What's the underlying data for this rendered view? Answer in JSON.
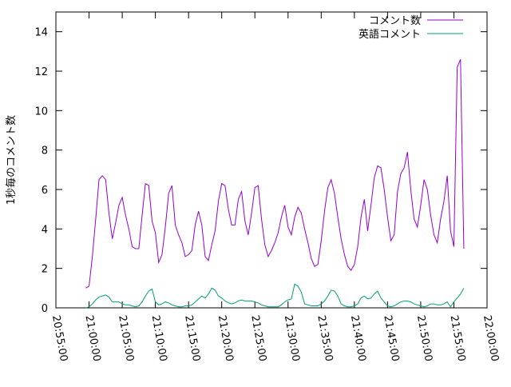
{
  "chart_data": {
    "type": "line",
    "y_label": "1秒毎のコメント数",
    "x": [
      "20:59:30",
      "21:00:00",
      "21:00:30",
      "21:01:00",
      "21:01:30",
      "21:02:00",
      "21:02:30",
      "21:03:00",
      "21:03:30",
      "21:04:00",
      "21:04:30",
      "21:05:00",
      "21:05:30",
      "21:06:00",
      "21:06:30",
      "21:07:00",
      "21:07:30",
      "21:08:00",
      "21:08:30",
      "21:09:00",
      "21:09:30",
      "21:10:00",
      "21:10:30",
      "21:11:00",
      "21:11:30",
      "21:12:00",
      "21:12:30",
      "21:13:00",
      "21:13:30",
      "21:14:00",
      "21:14:30",
      "21:15:00",
      "21:15:30",
      "21:16:00",
      "21:16:30",
      "21:17:00",
      "21:17:30",
      "21:18:00",
      "21:18:30",
      "21:19:00",
      "21:19:30",
      "21:20:00",
      "21:20:30",
      "21:21:00",
      "21:21:30",
      "21:22:00",
      "21:22:30",
      "21:23:00",
      "21:23:30",
      "21:24:00",
      "21:24:30",
      "21:25:00",
      "21:25:30",
      "21:26:00",
      "21:26:30",
      "21:27:00",
      "21:27:30",
      "21:28:00",
      "21:28:30",
      "21:29:00",
      "21:29:30",
      "21:30:00",
      "21:30:30",
      "21:31:00",
      "21:31:30",
      "21:32:00",
      "21:32:30",
      "21:33:00",
      "21:33:30",
      "21:34:00",
      "21:34:30",
      "21:35:00",
      "21:35:30",
      "21:36:00",
      "21:36:30",
      "21:37:00",
      "21:37:30",
      "21:38:00",
      "21:38:30",
      "21:39:00",
      "21:39:30",
      "21:40:00",
      "21:40:30",
      "21:41:00",
      "21:41:30",
      "21:42:00",
      "21:42:30",
      "21:43:00",
      "21:43:30",
      "21:44:00",
      "21:44:30",
      "21:45:00",
      "21:45:30",
      "21:46:00",
      "21:46:30",
      "21:47:00",
      "21:47:30",
      "21:48:00",
      "21:48:30",
      "21:49:00",
      "21:49:30",
      "21:50:00",
      "21:50:30",
      "21:51:00",
      "21:51:30",
      "21:52:00",
      "21:52:30",
      "21:53:00",
      "21:53:30",
      "21:54:00",
      "21:54:30",
      "21:55:00",
      "21:55:30",
      "21:56:00",
      "21:56:30"
    ],
    "series": [
      {
        "name": "コメント数",
        "color": "#9400d3",
        "values": [
          1.0,
          1.1,
          2.6,
          4.5,
          6.5,
          6.7,
          6.5,
          4.8,
          3.5,
          4.3,
          5.2,
          5.6,
          4.7,
          4.0,
          3.1,
          3.0,
          3.0,
          4.7,
          6.3,
          6.2,
          4.4,
          3.8,
          2.3,
          2.7,
          4.1,
          5.8,
          6.2,
          4.2,
          3.7,
          3.3,
          2.6,
          2.7,
          2.9,
          4.2,
          4.9,
          4.2,
          2.6,
          2.4,
          3.2,
          3.9,
          5.4,
          6.3,
          6.2,
          5.0,
          4.2,
          4.2,
          5.5,
          5.9,
          4.4,
          3.7,
          4.8,
          6.1,
          6.2,
          4.5,
          3.2,
          2.6,
          2.9,
          3.3,
          3.8,
          4.6,
          5.2,
          4.1,
          3.7,
          4.6,
          5.1,
          4.8,
          4.0,
          3.3,
          2.5,
          2.1,
          2.2,
          3.4,
          4.9,
          6.1,
          6.5,
          5.8,
          4.6,
          3.5,
          2.7,
          2.1,
          1.9,
          2.2,
          3.1,
          4.6,
          5.5,
          3.9,
          5.2,
          6.6,
          7.2,
          7.1,
          6.0,
          4.6,
          3.4,
          3.7,
          5.9,
          6.8,
          7.1,
          7.9,
          6.0,
          4.5,
          4.1,
          5.2,
          6.5,
          6.0,
          4.7,
          3.7,
          3.3,
          4.5,
          5.4,
          6.7,
          3.9,
          3.1,
          12.2,
          12.6,
          3.0
        ]
      },
      {
        "name": "英語コメント",
        "color": "#009e73",
        "values": [
          0.0,
          0.05,
          0.2,
          0.4,
          0.55,
          0.6,
          0.65,
          0.55,
          0.3,
          0.3,
          0.3,
          0.2,
          0.15,
          0.15,
          0.1,
          0.05,
          0.1,
          0.3,
          0.6,
          0.85,
          0.95,
          0.3,
          0.15,
          0.2,
          0.3,
          0.25,
          0.15,
          0.1,
          0.05,
          0.05,
          0.1,
          0.1,
          0.15,
          0.3,
          0.45,
          0.6,
          0.5,
          0.7,
          1.0,
          0.9,
          0.6,
          0.5,
          0.35,
          0.25,
          0.2,
          0.25,
          0.35,
          0.4,
          0.35,
          0.35,
          0.35,
          0.3,
          0.25,
          0.15,
          0.1,
          0.05,
          0.05,
          0.05,
          0.05,
          0.15,
          0.3,
          0.4,
          0.45,
          1.2,
          1.1,
          0.8,
          0.2,
          0.15,
          0.1,
          0.1,
          0.1,
          0.2,
          0.35,
          0.6,
          0.9,
          0.85,
          0.6,
          0.2,
          0.1,
          0.05,
          0.05,
          0.1,
          0.2,
          0.5,
          0.6,
          0.45,
          0.5,
          0.7,
          0.85,
          0.5,
          0.3,
          0.1,
          0.05,
          0.1,
          0.2,
          0.3,
          0.35,
          0.35,
          0.3,
          0.2,
          0.15,
          0.1,
          0.05,
          0.1,
          0.2,
          0.2,
          0.15,
          0.15,
          0.2,
          0.3,
          0.05,
          0.3,
          0.5,
          0.7,
          1.0
        ]
      }
    ],
    "xlim": [
      "20:55:00",
      "22:00:00"
    ],
    "xticks": [
      "20:55:00",
      "21:00:00",
      "21:05:00",
      "21:10:00",
      "21:15:00",
      "21:20:00",
      "21:25:00",
      "21:30:00",
      "21:35:00",
      "21:40:00",
      "21:45:00",
      "21:50:00",
      "21:55:00",
      "22:00:00"
    ],
    "ylim": [
      0,
      15
    ],
    "yticks": [
      0,
      2,
      4,
      6,
      8,
      10,
      12,
      14
    ],
    "legend": "top-right"
  }
}
